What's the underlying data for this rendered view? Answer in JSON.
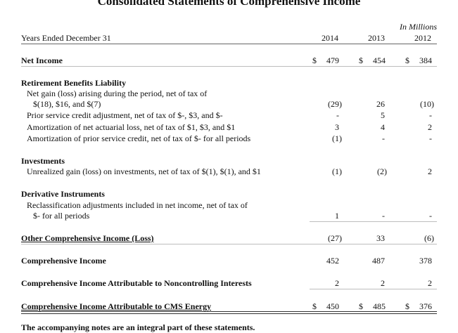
{
  "document": {
    "title": "Consolidated Statements of Comprehensive Income",
    "unit_note": "In Millions",
    "header_label": "Years Ended December 31",
    "years": [
      "2014",
      "2013",
      "2012"
    ],
    "footer": "The accompanying notes are an integral part of these statements."
  },
  "net_income": {
    "label": "Net Income",
    "dollar": "$",
    "values": [
      "479",
      "454",
      "384"
    ]
  },
  "retirement": {
    "heading": "Retirement Benefits Liability",
    "rows": [
      {
        "label": "Net gain (loss) arising during the period, net of tax of",
        "label2": "$(18), $16, and $(7)",
        "values": [
          "(29)",
          "26",
          "(10)"
        ]
      },
      {
        "label": "Prior service credit adjustment, net of tax of $-, $3, and $-",
        "values": [
          "-",
          "5",
          "-"
        ]
      },
      {
        "label": "Amortization of net actuarial loss, net of tax of $1, $3, and $1",
        "values": [
          "3",
          "4",
          "2"
        ]
      },
      {
        "label": "Amortization of prior service credit, net of tax of $- for all periods",
        "values": [
          "(1)",
          "-",
          "-"
        ]
      }
    ]
  },
  "investments": {
    "heading": "Investments",
    "rows": [
      {
        "label": "Unrealized gain (loss) on investments, net of tax of $(1), $(1), and $1",
        "values": [
          "(1)",
          "(2)",
          "2"
        ]
      }
    ]
  },
  "derivatives": {
    "heading": "Derivative Instruments",
    "rows": [
      {
        "label": "Reclassification adjustments included in net income, net of tax of",
        "label2": "$- for all periods",
        "values": [
          "1",
          "-",
          "-"
        ]
      }
    ]
  },
  "oci": {
    "label": "Other Comprehensive Income (Loss)",
    "values": [
      "(27)",
      "33",
      "(6)"
    ]
  },
  "comprehensive_income": {
    "label": "Comprehensive Income",
    "values": [
      "452",
      "487",
      "378"
    ]
  },
  "noncontrolling": {
    "label": "Comprehensive Income Attributable to Noncontrolling Interests",
    "values": [
      "2",
      "2",
      "2"
    ]
  },
  "cms": {
    "label": "Comprehensive Income Attributable to CMS Energy",
    "dollar": "$",
    "values": [
      "450",
      "485",
      "376"
    ]
  }
}
